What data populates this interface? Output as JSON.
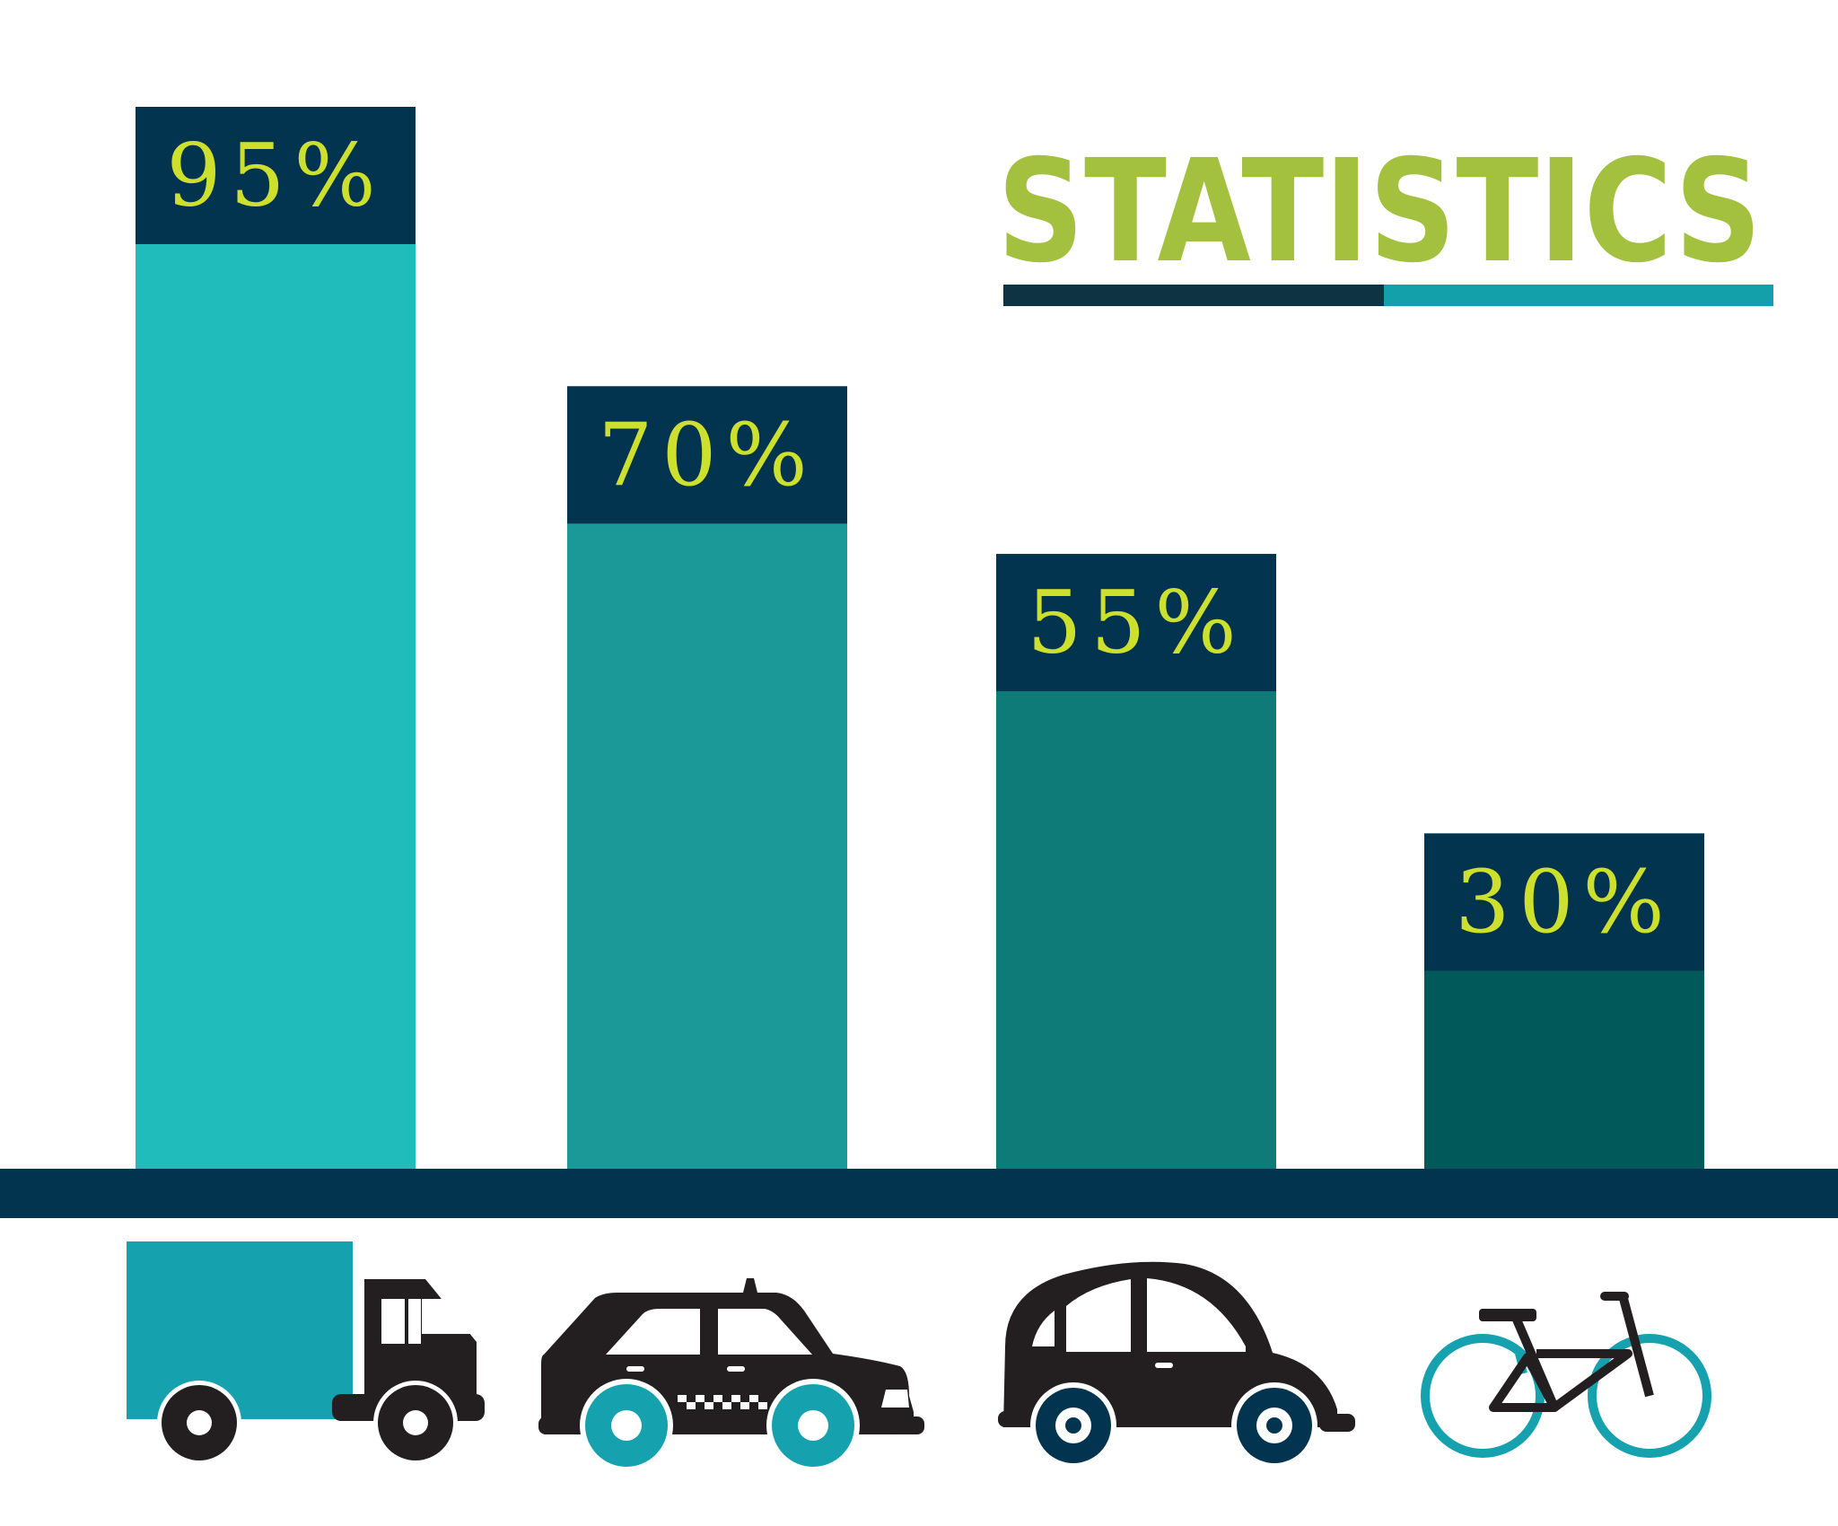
{
  "chart_data": {
    "type": "bar",
    "title": "STATISTICS",
    "categories": [
      "truck",
      "taxi",
      "car",
      "bicycle"
    ],
    "values": [
      95,
      70,
      55,
      30
    ],
    "value_labels": [
      "95%",
      "70%",
      "55%",
      "30%"
    ],
    "xlabel": "",
    "ylabel": "",
    "ylim": [
      0,
      100
    ],
    "grid": false,
    "legend": "none"
  },
  "colors": {
    "background": "#ffffff",
    "title": "#a3c13f",
    "label_box": "#03344f",
    "label_text": "#cde02e",
    "baseline": "#03344f",
    "underline_dark": "#0e3342",
    "underline_teal": "#13a0ab",
    "bars": [
      "#20bcbc",
      "#1a9998",
      "#0f7b78",
      "#02595a"
    ],
    "icon_dark": "#231f20",
    "icon_teal": "#15a1ad"
  },
  "icons": [
    "truck-icon",
    "taxi-icon",
    "car-icon",
    "bicycle-icon"
  ]
}
